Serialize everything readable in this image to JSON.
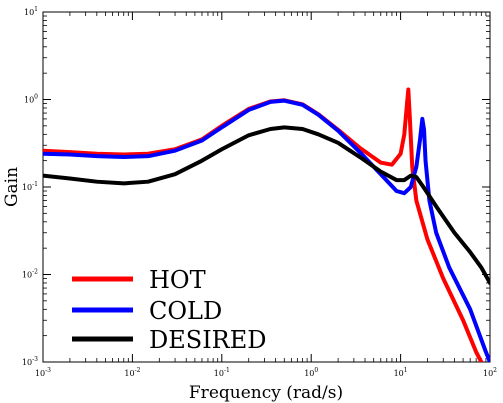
{
  "chart_data": {
    "type": "line",
    "xscale": "log",
    "yscale": "log",
    "xlim": [
      0.001,
      100
    ],
    "ylim": [
      0.001,
      10
    ],
    "xlabel": "Frequency (rad/s)",
    "ylabel": "Gain",
    "grid": false,
    "legend_position": "bottom-left",
    "x_ticks": [
      {
        "base": "10",
        "exp": "-3",
        "value": 0.001
      },
      {
        "base": "10",
        "exp": "-2",
        "value": 0.01
      },
      {
        "base": "10",
        "exp": "-1",
        "value": 0.1
      },
      {
        "base": "10",
        "exp": "0",
        "value": 1
      },
      {
        "base": "10",
        "exp": "1",
        "value": 10
      },
      {
        "base": "10",
        "exp": "2",
        "value": 100
      }
    ],
    "y_ticks": [
      {
        "base": "10",
        "exp": "-3",
        "value": 0.001
      },
      {
        "base": "10",
        "exp": "-2",
        "value": 0.01
      },
      {
        "base": "10",
        "exp": "-1",
        "value": 0.1
      },
      {
        "base": "10",
        "exp": "0",
        "value": 1
      },
      {
        "base": "10",
        "exp": "1",
        "value": 10
      }
    ],
    "series": [
      {
        "name": "HOT",
        "color": "#ff0000",
        "points": [
          [
            0.001,
            0.26
          ],
          [
            0.002,
            0.25
          ],
          [
            0.004,
            0.24
          ],
          [
            0.008,
            0.235
          ],
          [
            0.015,
            0.24
          ],
          [
            0.03,
            0.27
          ],
          [
            0.06,
            0.35
          ],
          [
            0.1,
            0.5
          ],
          [
            0.2,
            0.78
          ],
          [
            0.35,
            0.95
          ],
          [
            0.5,
            0.98
          ],
          [
            0.8,
            0.88
          ],
          [
            1.2,
            0.68
          ],
          [
            2,
            0.45
          ],
          [
            3.5,
            0.28
          ],
          [
            6,
            0.19
          ],
          [
            8,
            0.18
          ],
          [
            10,
            0.24
          ],
          [
            11,
            0.4
          ],
          [
            11.8,
            0.9
          ],
          [
            12.2,
            1.3
          ],
          [
            12.7,
            0.6
          ],
          [
            13.5,
            0.17
          ],
          [
            15,
            0.07
          ],
          [
            20,
            0.025
          ],
          [
            30,
            0.009
          ],
          [
            50,
            0.003
          ],
          [
            70,
            0.0013
          ],
          [
            80,
            0.001
          ]
        ]
      },
      {
        "name": "COLD",
        "color": "#0000ff",
        "points": [
          [
            0.001,
            0.24
          ],
          [
            0.002,
            0.235
          ],
          [
            0.004,
            0.225
          ],
          [
            0.008,
            0.22
          ],
          [
            0.015,
            0.225
          ],
          [
            0.03,
            0.26
          ],
          [
            0.06,
            0.34
          ],
          [
            0.1,
            0.48
          ],
          [
            0.2,
            0.76
          ],
          [
            0.35,
            0.94
          ],
          [
            0.5,
            0.97
          ],
          [
            0.8,
            0.87
          ],
          [
            1.2,
            0.67
          ],
          [
            2,
            0.44
          ],
          [
            3.5,
            0.25
          ],
          [
            6,
            0.14
          ],
          [
            9,
            0.09
          ],
          [
            11,
            0.085
          ],
          [
            13,
            0.1
          ],
          [
            15,
            0.17
          ],
          [
            16.5,
            0.35
          ],
          [
            17.5,
            0.6
          ],
          [
            18.3,
            0.45
          ],
          [
            19,
            0.2
          ],
          [
            21,
            0.07
          ],
          [
            25,
            0.03
          ],
          [
            35,
            0.012
          ],
          [
            60,
            0.004
          ],
          [
            90,
            0.0013
          ],
          [
            100,
            0.001
          ]
        ]
      },
      {
        "name": "DESIRED",
        "color": "#000000",
        "points": [
          [
            0.001,
            0.135
          ],
          [
            0.002,
            0.125
          ],
          [
            0.004,
            0.115
          ],
          [
            0.008,
            0.11
          ],
          [
            0.015,
            0.115
          ],
          [
            0.03,
            0.14
          ],
          [
            0.06,
            0.2
          ],
          [
            0.1,
            0.27
          ],
          [
            0.2,
            0.39
          ],
          [
            0.35,
            0.46
          ],
          [
            0.5,
            0.48
          ],
          [
            0.8,
            0.46
          ],
          [
            1.2,
            0.4
          ],
          [
            2,
            0.32
          ],
          [
            3.5,
            0.22
          ],
          [
            6,
            0.15
          ],
          [
            9,
            0.12
          ],
          [
            11,
            0.12
          ],
          [
            13,
            0.135
          ],
          [
            15,
            0.13
          ],
          [
            18,
            0.1
          ],
          [
            25,
            0.06
          ],
          [
            40,
            0.03
          ],
          [
            60,
            0.018
          ],
          [
            80,
            0.012
          ],
          [
            100,
            0.008
          ]
        ]
      }
    ]
  }
}
